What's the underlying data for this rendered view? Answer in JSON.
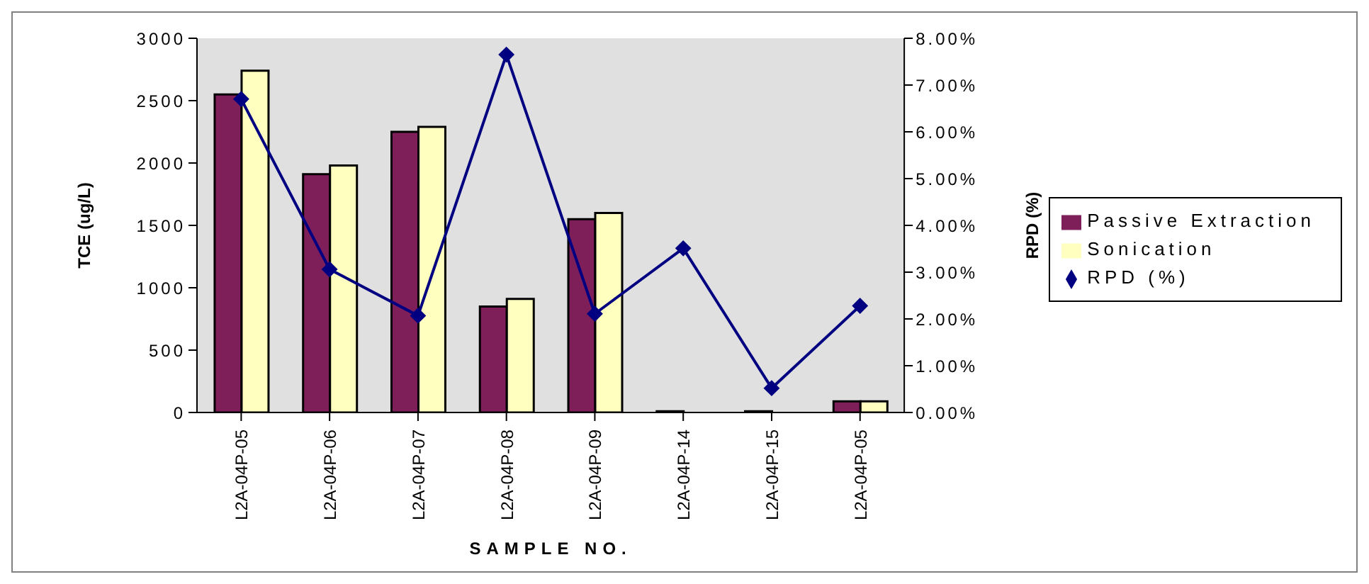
{
  "chart_data": {
    "type": "bar",
    "xlabel": "SAMPLE NO.",
    "ylabel": "TCE (ug/L)",
    "y2label": "RPD (%)",
    "categories": [
      "L2A-04P-05",
      "L2A-04P-06",
      "L2A-04P-07",
      "L2A-04P-08",
      "L2A-04P-09",
      "L2A-04P-14",
      "L2A-04P-15",
      "L2A-04P-05"
    ],
    "series": [
      {
        "name": "Passive Extraction",
        "color": "#7f1f5a",
        "values": [
          2550,
          1910,
          2250,
          850,
          1550,
          10,
          10,
          90
        ]
      },
      {
        "name": "Sonication",
        "color": "#ffffc0",
        "values": [
          2740,
          1980,
          2290,
          910,
          1600,
          null,
          null,
          90
        ]
      },
      {
        "name": "RPD (%)",
        "type": "line",
        "axis": "y2",
        "color": "#000080",
        "marker": "diamond",
        "values": [
          6.7,
          3.06,
          2.07,
          7.65,
          2.11,
          3.51,
          0.52,
          2.28
        ]
      }
    ],
    "ylim": [
      0,
      3000
    ],
    "yticks": [
      0,
      500,
      1000,
      1500,
      2000,
      2500,
      3000
    ],
    "y2lim": [
      0,
      8
    ],
    "y2ticks": [
      {
        "value": 0,
        "label": "0.00%"
      },
      {
        "value": 1,
        "label": "1.00%"
      },
      {
        "value": 2,
        "label": "2.00%"
      },
      {
        "value": 3,
        "label": "3.00%"
      },
      {
        "value": 4,
        "label": "4.00%"
      },
      {
        "value": 5,
        "label": "5.00%"
      },
      {
        "value": 6,
        "label": "6.00%"
      },
      {
        "value": 7,
        "label": "7.00%"
      },
      {
        "value": 8,
        "label": "8.00%"
      }
    ],
    "grid": false,
    "legend": "right"
  }
}
